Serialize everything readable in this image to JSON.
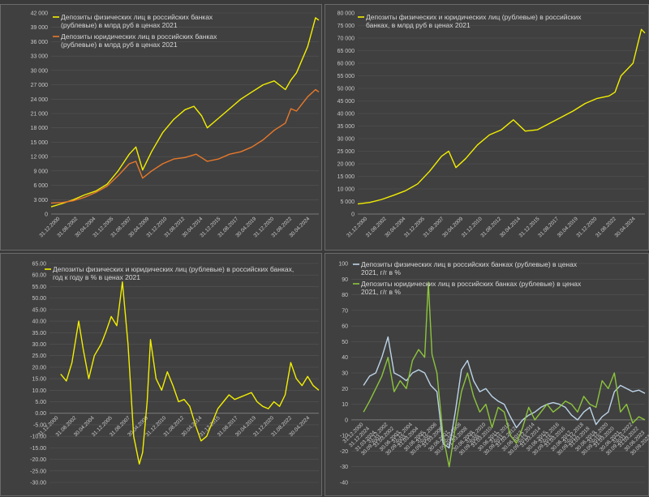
{
  "chart_data": [
    {
      "type": "line",
      "yticks": [
        "0",
        "3 000",
        "6 000",
        "9 000",
        "12 000",
        "15 000",
        "18 000",
        "21 000",
        "24 000",
        "27 000",
        "30 000",
        "33 000",
        "36 000",
        "39 000",
        "42 000"
      ],
      "ylim": [
        0,
        42000
      ],
      "xticks": [
        "31.12.2000",
        "31.08.2002",
        "30.04.2004",
        "31.12.2005",
        "31.08.2007",
        "30.04.2009",
        "31.12.2010",
        "31.08.2012",
        "30.04.2014",
        "31.12.2015",
        "31.08.2017",
        "30.04.2019",
        "31.12.2020",
        "31.08.2022",
        "30.04.2024"
      ],
      "series": [
        {
          "name": "Депозиты физических лиц в российских банках (рублевые) в млрд руб в ценах 2021",
          "color": "#f2ee00",
          "x": [
            2001,
            2002,
            2003,
            2004,
            2005,
            2006,
            2007,
            2008,
            2008.6,
            2009.2,
            2010,
            2011,
            2012,
            2013,
            2013.8,
            2014.5,
            2015,
            2016,
            2017,
            2018,
            2019,
            2020,
            2021,
            2022,
            2022.5,
            2023,
            2024,
            2024.7,
            2025
          ],
          "y": [
            1500,
            2200,
            3000,
            4000,
            4800,
            6200,
            9000,
            12500,
            14000,
            9200,
            13000,
            17000,
            19800,
            21800,
            22500,
            20500,
            18000,
            20000,
            22000,
            24000,
            25500,
            27000,
            27800,
            26000,
            28000,
            29500,
            35000,
            41000,
            40500
          ]
        },
        {
          "name": "Депозиты юридических лиц в российских банках (рублевые) в млрд руб в ценах 2021",
          "color": "#e8782a",
          "x": [
            2001,
            2002,
            2003,
            2004,
            2005,
            2006,
            2007,
            2008,
            2008.6,
            2009.2,
            2010,
            2011,
            2012,
            2013,
            2014,
            2015,
            2016,
            2017,
            2018,
            2019,
            2020,
            2021,
            2022,
            2022.5,
            2023,
            2024,
            2024.7,
            2025
          ],
          "y": [
            2300,
            2400,
            2800,
            3500,
            4500,
            5800,
            8000,
            10500,
            11000,
            7500,
            9000,
            10500,
            11500,
            11800,
            12500,
            11000,
            11500,
            12500,
            13000,
            14000,
            15500,
            17500,
            19000,
            22000,
            21500,
            24500,
            26000,
            25500
          ]
        }
      ]
    },
    {
      "type": "line",
      "yticks": [
        "0",
        "5 000",
        "10 000",
        "15 000",
        "20 000",
        "25 000",
        "30 000",
        "35 000",
        "40 000",
        "45 000",
        "50 000",
        "55 000",
        "60 000",
        "65 000",
        "70 000",
        "75 000",
        "80 000"
      ],
      "ylim": [
        0,
        80000
      ],
      "xticks": [
        "31.12.2000",
        "31.08.2002",
        "30.04.2004",
        "31.12.2005",
        "31.08.2007",
        "30.04.2009",
        "31.12.2010",
        "31.08.2012",
        "30.04.2014",
        "31.12.2015",
        "31.08.2017",
        "30.04.2019",
        "31.12.2020",
        "31.08.2022",
        "30.04.2024"
      ],
      "series": [
        {
          "name": "Депозиты физических и юридических лиц (рублевые) в российских банках, в млрд руб в ценах 2021",
          "color": "#f2ee00",
          "x": [
            2001,
            2002,
            2003,
            2004,
            2005,
            2006,
            2007,
            2008,
            2008.6,
            2009.2,
            2010,
            2011,
            2012,
            2013,
            2014,
            2015,
            2016,
            2017,
            2018,
            2019,
            2020,
            2021,
            2022,
            2022.5,
            2023,
            2024,
            2024.7,
            2025
          ],
          "y": [
            4000,
            4600,
            5800,
            7500,
            9300,
            12000,
            17000,
            23000,
            25000,
            18500,
            22000,
            27500,
            31500,
            33500,
            37500,
            33000,
            33500,
            36000,
            38500,
            41000,
            44000,
            46000,
            47000,
            48500,
            55000,
            60000,
            73500,
            72000
          ]
        }
      ]
    },
    {
      "type": "line",
      "yticks": [
        "-30.00",
        "-25.00",
        "-20.00",
        "-15.00",
        "-10.00",
        "-5.00",
        "0.00",
        "5.00",
        "10.00",
        "15.00",
        "20.00",
        "25.00",
        "30.00",
        "35.00",
        "40.00",
        "45.00",
        "50.00",
        "55.00",
        "60.00",
        "65.00"
      ],
      "ylim": [
        -30,
        65
      ],
      "xticks": [
        "31.12.2000",
        "31.08.2002",
        "30.04.2004",
        "31.12.2005",
        "31.08.2007",
        "30.04.2009",
        "31.12.2010",
        "31.08.2012",
        "30.04.2014",
        "31.12.2015",
        "31.08.2017",
        "30.04.2019",
        "31.12.2020",
        "31.08.2022",
        "30.04.2024"
      ],
      "series": [
        {
          "name": "Депозиты физических и юридических лиц (рублевые) в российских банках, год к году в % в ценах 2021",
          "color": "#f2ee00",
          "x": [
            2002,
            2002.5,
            2003,
            2003.6,
            2004,
            2004.5,
            2005,
            2005.6,
            2006,
            2006.5,
            2007,
            2007.5,
            2008,
            2008.5,
            2009,
            2009.3,
            2009.7,
            2010,
            2010.5,
            2011,
            2011.5,
            2012,
            2012.5,
            2013,
            2013.5,
            2014,
            2014.5,
            2015,
            2015.5,
            2016,
            2016.5,
            2017,
            2017.5,
            2018,
            2018.5,
            2019,
            2019.5,
            2020,
            2020.5,
            2021,
            2021.5,
            2022,
            2022.5,
            2023,
            2023.5,
            2024,
            2024.5,
            2025
          ],
          "y": [
            17,
            14,
            22,
            40,
            28,
            15,
            25,
            30,
            35,
            42,
            38,
            57,
            30,
            -10,
            -22,
            -17,
            5,
            32,
            15,
            10,
            18,
            12,
            5,
            6,
            3,
            -5,
            -12,
            -10,
            -4,
            2,
            5,
            8,
            6,
            7,
            8,
            9,
            5,
            3,
            2,
            5,
            3,
            8,
            22,
            15,
            12,
            16,
            12,
            10
          ]
        }
      ]
    },
    {
      "type": "line",
      "yticks": [
        "-40",
        "-30",
        "-20",
        "-10",
        "0",
        "10",
        "20",
        "30",
        "40",
        "50",
        "60",
        "70",
        "80",
        "90",
        "100"
      ],
      "ylim": [
        -40,
        100
      ],
      "xticks": [
        "31.12.2000",
        "31.12.2002",
        "31.12.2004",
        "31.12.2006",
        "31.12.2008",
        "31.12.2010",
        "31.12.2012",
        "31.12.2014",
        "31.12.2016",
        "31.12.2018",
        "31.12.2020",
        "31.12.2022",
        "31.12.2024",
        "31.03.2002",
        "31.03.2004",
        "31.03.2006",
        "31.03.2008",
        "31.03.2010",
        "31.03.2012",
        "31.03.2014",
        "31.03.2016",
        "31.03.2018",
        "31.03.2020",
        "31.03.2022",
        "31.03.2024",
        "30.06.2003",
        "30.06.2005",
        "30.06.2007",
        "30.06.2009",
        "30.06.2011",
        "30.06.2013",
        "30.06.2015",
        "30.06.2017",
        "30.06.2019",
        "30.06.2021",
        "30.06.2023",
        "30.09.2001",
        "30.09.2003",
        "30.09.2005",
        "30.09.2007",
        "30.09.2009",
        "30.09.2011",
        "30.09.2013",
        "30.09.2015",
        "30.09.2017",
        "30.09.2019",
        "30.09.2021",
        "30.09.2023"
      ],
      "series": [
        {
          "name": "Депозиты физических лиц в российских банках (рублевые) в ценах 2021, г/г в %",
          "color": "#bcd4e8",
          "x": [
            2002,
            2002.5,
            2003,
            2003.5,
            2004,
            2004.5,
            2005,
            2005.5,
            2006,
            2006.5,
            2007,
            2007.5,
            2008,
            2008.5,
            2009,
            2009.5,
            2010,
            2010.5,
            2011,
            2011.5,
            2012,
            2012.5,
            2013,
            2013.5,
            2014,
            2014.5,
            2015,
            2015.5,
            2016,
            2016.5,
            2017,
            2017.5,
            2018,
            2018.5,
            2019,
            2019.5,
            2020,
            2020.5,
            2021,
            2021.5,
            2022,
            2022.5,
            2023,
            2023.5,
            2024,
            2024.5,
            2025
          ],
          "y": [
            22,
            28,
            30,
            40,
            53,
            30,
            28,
            25,
            30,
            32,
            30,
            22,
            18,
            -15,
            -18,
            5,
            32,
            38,
            25,
            18,
            20,
            15,
            12,
            10,
            2,
            -5,
            0,
            3,
            5,
            8,
            10,
            11,
            10,
            8,
            3,
            0,
            5,
            8,
            -3,
            2,
            5,
            18,
            22,
            20,
            18,
            19,
            17
          ]
        },
        {
          "name": "Депозиты юридических лиц в российских банках (рублевые) в ценах 2021, г/г в %",
          "color": "#8cc43c",
          "x": [
            2002,
            2002.5,
            2003,
            2003.5,
            2004,
            2004.5,
            2005,
            2005.5,
            2006,
            2006.5,
            2007,
            2007.3,
            2007.6,
            2008,
            2008.5,
            2009,
            2009.5,
            2010,
            2010.5,
            2011,
            2011.5,
            2012,
            2012.5,
            2013,
            2013.5,
            2014,
            2014.5,
            2015,
            2015.5,
            2016,
            2016.5,
            2017,
            2017.5,
            2018,
            2018.5,
            2019,
            2019.5,
            2020,
            2020.5,
            2021,
            2021.5,
            2022,
            2022.5,
            2023,
            2023.5,
            2024,
            2024.5,
            2025
          ],
          "y": [
            5,
            12,
            20,
            28,
            40,
            18,
            25,
            20,
            38,
            45,
            40,
            88,
            42,
            30,
            -10,
            -30,
            -5,
            18,
            30,
            15,
            5,
            10,
            -5,
            8,
            5,
            -10,
            -15,
            -5,
            8,
            0,
            5,
            10,
            5,
            8,
            12,
            10,
            5,
            15,
            10,
            8,
            25,
            20,
            30,
            5,
            10,
            -2,
            2,
            0
          ]
        }
      ]
    }
  ]
}
